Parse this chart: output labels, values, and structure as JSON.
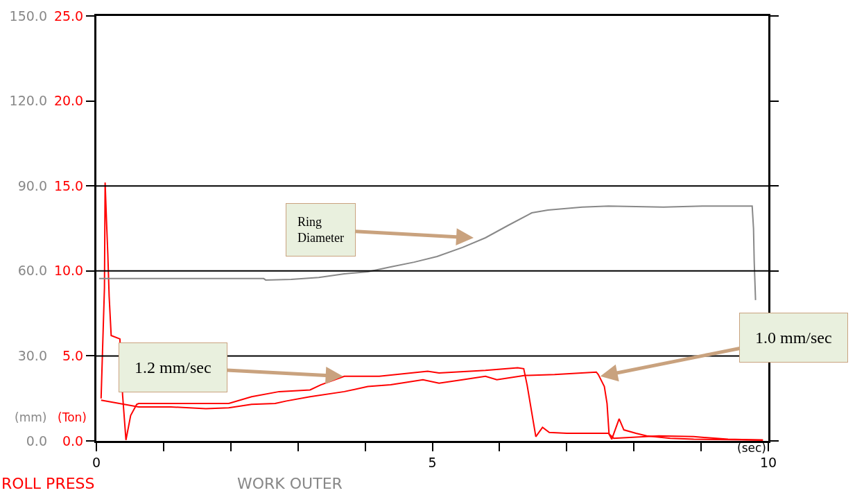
{
  "chart_data": {
    "type": "line",
    "xlabel": "(sec)",
    "ylabel": "(Ton)",
    "y2label": "(mm)",
    "xlim": [
      0,
      10
    ],
    "xticks": [
      0,
      {
        "value": 1,
        "label": null
      },
      {
        "value": 2,
        "label": null
      },
      {
        "value": 3,
        "label": null
      },
      {
        "value": 4,
        "label": null
      },
      5,
      {
        "value": 6,
        "label": null
      },
      {
        "value": 7,
        "label": null
      },
      {
        "value": 8,
        "label": null
      },
      {
        "value": 9,
        "label": null
      },
      10
    ],
    "ylim": [
      0,
      25
    ],
    "yticks": [
      {
        "value": 0,
        "label": "0.0"
      },
      {
        "value": 5,
        "label": "5.0"
      },
      {
        "value": 10,
        "label": "10.0"
      },
      {
        "value": 15,
        "label": "15.0"
      },
      {
        "value": 20,
        "label": "20.0"
      },
      {
        "value": 25,
        "label": "25.0"
      }
    ],
    "y2lim": [
      0,
      150
    ],
    "y2ticks": [
      {
        "value": 0,
        "label": "0.0"
      },
      {
        "value": 30,
        "label": "30.0"
      },
      {
        "value": 60,
        "label": "60.0"
      },
      {
        "value": 90,
        "label": "90.0"
      },
      {
        "value": 120,
        "label": "120.0"
      },
      {
        "value": 150,
        "label": "150.0"
      }
    ],
    "grid": false,
    "marker": "none",
    "line_style": "solid",
    "ref_lines": [
      {
        "axis": "y",
        "value": 5,
        "color": "#000000"
      },
      {
        "axis": "y",
        "value": 10,
        "color": "#000000"
      },
      {
        "axis": "y",
        "value": 15,
        "color": "#000000"
      }
    ],
    "annotations": [
      "Ring Diameter",
      {
        "text": "1.2 mm/sec",
        "x": 3.67,
        "y": 3.8
      },
      {
        "text": "1.0 mm/sec",
        "x": 7.5,
        "y": 3.8
      }
    ],
    "series": [
      {
        "name": "ROLL PRESS",
        "color": "#ff0000",
        "x": [
          0.07,
          0.12,
          0.13,
          0.15,
          0.17,
          0.19,
          0.22,
          0.35,
          0.39,
          0.44,
          0.51,
          0.6,
          0.63,
          1.97,
          2.31,
          2.72,
          3.18,
          3.34,
          3.69,
          4.21,
          4.93,
          5.1,
          5.79,
          6.27,
          6.36,
          6.41,
          6.54,
          6.64,
          6.74,
          7.0,
          7.62,
          7.7,
          8.37,
          8.89,
          9.4,
          9.92
        ],
        "values": [
          2.5,
          9,
          15.2,
          13,
          11,
          8.5,
          6.2,
          6.0,
          2.7,
          0.05,
          1.5,
          2.15,
          2.2,
          2.2,
          2.6,
          2.9,
          3.0,
          3.3,
          3.8,
          3.8,
          4.1,
          4.0,
          4.15,
          4.3,
          4.25,
          3.3,
          0.25,
          0.8,
          0.5,
          0.45,
          0.45,
          0.15,
          0.3,
          0.25,
          0.1,
          0.05
        ]
      },
      {
        "color": "#ff0000",
        "x": [
          0.07,
          0.63,
          1.11,
          1.63,
          1.97,
          2.31,
          2.66,
          2.83,
          3.18,
          3.69,
          4.04,
          4.38,
          4.86,
          5.1,
          5.45,
          5.79,
          5.96,
          6.38,
          6.82,
          7.44,
          7.47,
          7.56,
          7.6,
          7.63,
          7.67,
          7.78,
          7.85,
          8.03,
          8.19,
          8.54,
          8.89,
          9.92
        ],
        "values": [
          2.4,
          2.0,
          2.0,
          1.9,
          1.95,
          2.15,
          2.2,
          2.35,
          2.6,
          2.9,
          3.2,
          3.3,
          3.6,
          3.4,
          3.6,
          3.8,
          3.6,
          3.85,
          3.9,
          4.05,
          3.9,
          3.2,
          2.2,
          0.4,
          0.1,
          1.3,
          0.65,
          0.45,
          0.3,
          0.15,
          0.1,
          0.05
        ]
      },
      {
        "name": "WORK OUTER",
        "color": "#888888",
        "axis": "y2",
        "x": [
          0.04,
          2.49,
          2.52,
          2.9,
          3.31,
          3.69,
          4.04,
          4.38,
          4.73,
          5.07,
          5.45,
          5.79,
          6.13,
          6.48,
          6.72,
          7.23,
          7.62,
          8.44,
          9.02,
          9.76,
          9.78,
          9.79,
          9.81
        ],
        "values": [
          57.3,
          57.3,
          56.8,
          57.0,
          57.7,
          59.0,
          59.7,
          61.4,
          63.1,
          65.1,
          68.3,
          71.7,
          76.1,
          80.5,
          81.5,
          82.5,
          82.9,
          82.5,
          82.9,
          82.9,
          74.9,
          63.4,
          49.7
        ]
      }
    ]
  }
}
